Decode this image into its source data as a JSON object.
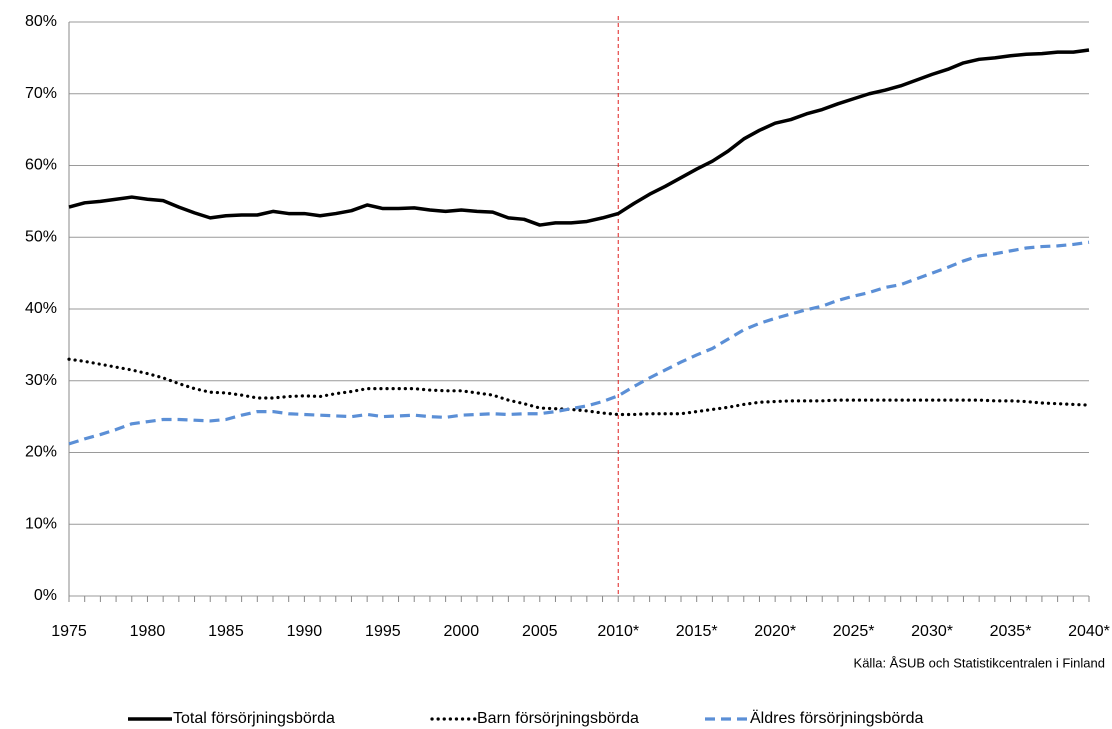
{
  "chart_data": {
    "type": "line",
    "source": "Källa: ÅSUB och Statistikcentralen i Finland",
    "categories": [
      "1975",
      null,
      null,
      null,
      null,
      "1980",
      null,
      null,
      null,
      null,
      "1985",
      null,
      null,
      null,
      null,
      "1990",
      null,
      null,
      null,
      null,
      "1995",
      null,
      null,
      null,
      null,
      "2000",
      null,
      null,
      null,
      null,
      "2005",
      null,
      null,
      null,
      null,
      "2010*",
      null,
      null,
      null,
      null,
      "2015*",
      null,
      null,
      null,
      null,
      "2020*",
      null,
      null,
      null,
      null,
      "2025*",
      null,
      null,
      null,
      null,
      "2030*",
      null,
      null,
      null,
      null,
      "2035*",
      null,
      null,
      null,
      null,
      "2040*"
    ],
    "ylim": [
      0,
      80
    ],
    "yticks": [
      {
        "value": 0,
        "label": "0%"
      },
      {
        "value": 10,
        "label": "10%"
      },
      {
        "value": 20,
        "label": "20%"
      },
      {
        "value": 30,
        "label": "30%"
      },
      {
        "value": 40,
        "label": "40%"
      },
      {
        "value": 50,
        "label": "50%"
      },
      {
        "value": 60,
        "label": "60%"
      },
      {
        "value": 70,
        "label": "70%"
      },
      {
        "value": 80,
        "label": "80%"
      }
    ],
    "grid": true,
    "legend": "bottom",
    "vline": {
      "index": 35,
      "color": "#e02020"
    },
    "series": [
      {
        "name": "Total försörjningsbörda",
        "color": "#000000",
        "style": "solid",
        "values": [
          54.2,
          54.8,
          55.0,
          55.3,
          55.6,
          55.3,
          55.1,
          54.2,
          53.4,
          52.7,
          53.0,
          53.1,
          53.1,
          53.6,
          53.3,
          53.3,
          53.0,
          53.3,
          53.7,
          54.5,
          54.0,
          54.0,
          54.1,
          53.8,
          53.6,
          53.8,
          53.6,
          53.5,
          52.7,
          52.5,
          51.7,
          52.0,
          52.0,
          52.2,
          52.7,
          53.3,
          54.7,
          56.0,
          57.1,
          58.3,
          59.5,
          60.6,
          62.0,
          63.7,
          64.9,
          65.9,
          66.4,
          67.2,
          67.8,
          68.6,
          69.3,
          70.0,
          70.5,
          71.1,
          71.9,
          72.7,
          73.4,
          74.3,
          74.8,
          75.0,
          75.3,
          75.5,
          75.6,
          75.8,
          75.8,
          76.1
        ]
      },
      {
        "name": "Barn försörjningsbörda",
        "color": "#000000",
        "style": "dotted",
        "values": [
          33.0,
          32.7,
          32.3,
          31.9,
          31.5,
          31.0,
          30.4,
          29.6,
          28.9,
          28.4,
          28.3,
          28.0,
          27.6,
          27.6,
          27.8,
          27.9,
          27.8,
          28.2,
          28.5,
          28.9,
          28.9,
          28.9,
          28.9,
          28.7,
          28.6,
          28.6,
          28.3,
          28.0,
          27.3,
          26.8,
          26.2,
          26.1,
          26.0,
          25.8,
          25.5,
          25.3,
          25.3,
          25.4,
          25.4,
          25.4,
          25.7,
          26.0,
          26.3,
          26.7,
          27.0,
          27.1,
          27.2,
          27.2,
          27.2,
          27.3,
          27.3,
          27.3,
          27.3,
          27.3,
          27.3,
          27.3,
          27.3,
          27.3,
          27.3,
          27.2,
          27.2,
          27.1,
          26.9,
          26.8,
          26.7,
          26.6
        ]
      },
      {
        "name": "Äldres försörjningsbörda",
        "color": "#5b8fd6",
        "style": "dashed",
        "values": [
          21.2,
          21.9,
          22.5,
          23.2,
          24.0,
          24.3,
          24.6,
          24.6,
          24.5,
          24.4,
          24.6,
          25.2,
          25.7,
          25.7,
          25.4,
          25.3,
          25.2,
          25.1,
          25.0,
          25.3,
          25.0,
          25.1,
          25.2,
          25.0,
          24.9,
          25.2,
          25.3,
          25.4,
          25.3,
          25.4,
          25.4,
          25.7,
          26.1,
          26.5,
          27.1,
          27.9,
          29.2,
          30.4,
          31.5,
          32.6,
          33.6,
          34.5,
          35.8,
          37.1,
          38.0,
          38.7,
          39.3,
          39.9,
          40.4,
          41.2,
          41.8,
          42.3,
          43.0,
          43.4,
          44.2,
          45.0,
          45.8,
          46.7,
          47.4,
          47.7,
          48.1,
          48.5,
          48.7,
          48.8,
          49.0,
          49.3
        ]
      }
    ]
  }
}
